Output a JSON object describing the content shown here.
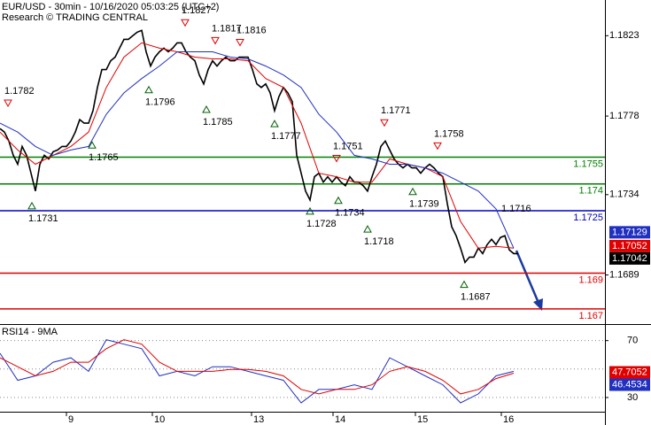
{
  "chart_data": [
    {
      "type": "line",
      "title": "EUR/USD - 30min - 10/16/2020 05:03:25 (UTC+2)",
      "subtitle": "Research © TRADING CENTRAL",
      "xlim": [
        0,
        136.6
      ],
      "ylim": [
        1.1662,
        1.1843
      ],
      "yticks": [
        1.1823,
        1.1778,
        1.1734,
        1.1689
      ],
      "series": [
        {
          "color": "#000000",
          "x": [
            0,
            1,
            2,
            3,
            4,
            5,
            6,
            7,
            8,
            9,
            10,
            11,
            12,
            13,
            14,
            15,
            16,
            17,
            18,
            19,
            20,
            21,
            22,
            23,
            24,
            25,
            26,
            27,
            28,
            29,
            30,
            31,
            32,
            33,
            34,
            35,
            36,
            37,
            38,
            39,
            40,
            41,
            42,
            43,
            44,
            45,
            46,
            47,
            48,
            49,
            50,
            51,
            52,
            53,
            54,
            55,
            56,
            57,
            58,
            59,
            60,
            61,
            62,
            63,
            64,
            65,
            66,
            67,
            68,
            69,
            70,
            71,
            72,
            73,
            74,
            75,
            76,
            77,
            78,
            79,
            80,
            81,
            82,
            83,
            84,
            85,
            86,
            87,
            88,
            89,
            90,
            91,
            92,
            93,
            94,
            95,
            96,
            97,
            98,
            99,
            100,
            101,
            102,
            103,
            104,
            105,
            106,
            107,
            108,
            109,
            110,
            111,
            112,
            113,
            114,
            115,
            116,
            117
          ],
          "values": [
            1.1771,
            1.1769,
            1.1764,
            1.1756,
            1.1751,
            1.1761,
            1.1756,
            1.1746,
            1.1736,
            1.1751,
            1.1756,
            1.1754,
            1.1758,
            1.1759,
            1.1761,
            1.1761,
            1.1764,
            1.1769,
            1.1776,
            1.1774,
            1.1774,
            1.1781,
            1.1794,
            1.1804,
            1.1804,
            1.1809,
            1.1811,
            1.1816,
            1.1821,
            1.1821,
            1.1823,
            1.1825,
            1.1826,
            1.1814,
            1.1806,
            1.1811,
            1.1814,
            1.1816,
            1.1814,
            1.1816,
            1.1819,
            1.1819,
            1.1814,
            1.1811,
            1.1809,
            1.1801,
            1.1796,
            1.1804,
            1.1809,
            1.1806,
            1.1809,
            1.1811,
            1.1809,
            1.1809,
            1.1811,
            1.1811,
            1.1811,
            1.1804,
            1.1796,
            1.1794,
            1.1796,
            1.1791,
            1.1781,
            1.1789,
            1.1794,
            1.1791,
            1.1786,
            1.1756,
            1.1746,
            1.1736,
            1.1731,
            1.1744,
            1.1746,
            1.1741,
            1.1744,
            1.1741,
            1.1744,
            1.1741,
            1.1739,
            1.1744,
            1.1741,
            1.1741,
            1.1739,
            1.1736,
            1.1744,
            1.1751,
            1.1761,
            1.1764,
            1.1759,
            1.1754,
            1.1751,
            1.1749,
            1.1751,
            1.1749,
            1.1749,
            1.1746,
            1.1749,
            1.1751,
            1.1749,
            1.1746,
            1.1744,
            1.1729,
            1.1716,
            1.1711,
            1.1704,
            1.1696,
            1.1699,
            1.1699,
            1.1704,
            1.1701,
            1.1706,
            1.1709,
            1.1706,
            1.171,
            1.1711,
            1.1703,
            1.1701,
            1.1701
          ]
        },
        {
          "color": "#e00000",
          "x": [
            0,
            4,
            8,
            12,
            16,
            20,
            24,
            28,
            32,
            36,
            40,
            44,
            48,
            52,
            56,
            60,
            64,
            68,
            72,
            76,
            80,
            84,
            88,
            92,
            96,
            100,
            104,
            108,
            112,
            116
          ],
          "values": [
            1.1769,
            1.1759,
            1.1751,
            1.1756,
            1.1761,
            1.1769,
            1.1794,
            1.1811,
            1.1819,
            1.1816,
            1.1814,
            1.1811,
            1.181,
            1.181,
            1.1809,
            1.1799,
            1.1794,
            1.1774,
            1.1746,
            1.1744,
            1.1741,
            1.1741,
            1.1754,
            1.1751,
            1.1749,
            1.1744,
            1.1719,
            1.1704,
            1.1705,
            1.1704
          ]
        },
        {
          "color": "#2030c0",
          "x": [
            0,
            4,
            8,
            12,
            16,
            20,
            24,
            28,
            32,
            36,
            40,
            44,
            48,
            52,
            56,
            60,
            64,
            68,
            72,
            76,
            80,
            84,
            88,
            92,
            96,
            100,
            104,
            108,
            112,
            116
          ],
          "values": [
            1.1774,
            1.1769,
            1.1761,
            1.1756,
            1.1759,
            1.1761,
            1.1779,
            1.1791,
            1.1799,
            1.1806,
            1.1814,
            1.1814,
            1.1814,
            1.1811,
            1.181,
            1.1806,
            1.1801,
            1.1794,
            1.1779,
            1.1769,
            1.1756,
            1.1754,
            1.1751,
            1.1751,
            1.1749,
            1.1746,
            1.1741,
            1.1736,
            1.1726,
            1.1704
          ]
        }
      ],
      "levels": [
        {
          "value": 1.1755,
          "color": "#008000"
        },
        {
          "value": 1.174,
          "color": "#008000"
        },
        {
          "value": 1.1725,
          "color": "#0000c0"
        },
        {
          "value": 1.169,
          "color": "#e00000"
        },
        {
          "value": 1.167,
          "color": "#e00000"
        }
      ],
      "annotations": [
        {
          "value": 1.1782,
          "x": 1.8,
          "kind": "high"
        },
        {
          "value": 1.1731,
          "x": 7.2,
          "kind": "low"
        },
        {
          "value": 1.1765,
          "x": 20.8,
          "kind": "low"
        },
        {
          "value": 1.1796,
          "x": 33.6,
          "kind": "low"
        },
        {
          "value": 1.1827,
          "x": 41.8,
          "kind": "high"
        },
        {
          "value": 1.1785,
          "x": 46.6,
          "kind": "low"
        },
        {
          "value": 1.1817,
          "x": 48.6,
          "kind": "high"
        },
        {
          "value": 1.1816,
          "x": 54.2,
          "kind": "high"
        },
        {
          "value": 1.1777,
          "x": 62,
          "kind": "low"
        },
        {
          "value": 1.1728,
          "x": 70,
          "kind": "low"
        },
        {
          "value": 1.1751,
          "x": 76,
          "kind": "high"
        },
        {
          "value": 1.1734,
          "x": 76.4,
          "kind": "low"
        },
        {
          "value": 1.1718,
          "x": 83,
          "kind": "low"
        },
        {
          "value": 1.1771,
          "x": 86.8,
          "kind": "high"
        },
        {
          "value": 1.1739,
          "x": 93.2,
          "kind": "low"
        },
        {
          "value": 1.1758,
          "x": 98.8,
          "kind": "high"
        },
        {
          "value": 1.1687,
          "x": 104.8,
          "kind": "low"
        },
        {
          "value": 1.1716,
          "x": 114,
          "kind": "label"
        }
      ],
      "last_values": [
        {
          "value": 1.17129,
          "color": "#2030c0"
        },
        {
          "value": 1.17052,
          "color": "#e00000"
        },
        {
          "value": 1.17042,
          "color": "#000000"
        }
      ]
    },
    {
      "type": "line",
      "title": "RSI14 - 9MA",
      "xlim": [
        0,
        136.6
      ],
      "xticks": [
        {
          "value": 15,
          "label": "9"
        },
        {
          "value": 34.4,
          "label": "10"
        },
        {
          "value": 56.8,
          "label": "13"
        },
        {
          "value": 75.2,
          "label": "14"
        },
        {
          "value": 93.8,
          "label": "15"
        },
        {
          "value": 113.2,
          "label": "16"
        }
      ],
      "ylim": [
        20,
        81
      ],
      "yticks": [
        30,
        70
      ],
      "midline": 50,
      "series": [
        {
          "color": "#2030c0",
          "x": [
            0,
            4,
            8,
            12,
            16,
            20,
            24,
            28,
            32,
            36,
            40,
            44,
            48,
            52,
            56,
            60,
            64,
            68,
            72,
            76,
            80,
            84,
            88,
            92,
            96,
            100,
            104,
            108,
            112,
            116
          ],
          "values": [
            61.1,
            42.1,
            45.2,
            54.8,
            57.9,
            48.4,
            70.6,
            67.5,
            64.3,
            45.2,
            48.4,
            45.2,
            51.6,
            51.6,
            48.4,
            45.2,
            42.1,
            26.2,
            35.7,
            35.7,
            38.9,
            35.7,
            57.9,
            51.6,
            45.2,
            38.9,
            26.2,
            32.5,
            45.2,
            48.4
          ]
        },
        {
          "color": "#e00000",
          "x": [
            0,
            4,
            8,
            12,
            16,
            20,
            24,
            28,
            32,
            36,
            40,
            44,
            48,
            52,
            56,
            60,
            64,
            68,
            72,
            76,
            80,
            84,
            88,
            92,
            96,
            100,
            104,
            108,
            112,
            116
          ],
          "values": [
            57.9,
            51.6,
            45.2,
            48.4,
            54.8,
            54.8,
            64.3,
            70.6,
            67.5,
            54.8,
            48.4,
            48.4,
            48.4,
            49.7,
            49.7,
            48.4,
            45.2,
            35.7,
            32.5,
            35.7,
            35.7,
            38.9,
            48.4,
            51.6,
            48.4,
            42.1,
            32.5,
            35.7,
            43.3,
            47.1
          ]
        }
      ],
      "last_values": [
        {
          "value": 47.7052,
          "color": "#e00000"
        },
        {
          "value": 46.4534,
          "color": "#2030c0"
        }
      ]
    }
  ]
}
